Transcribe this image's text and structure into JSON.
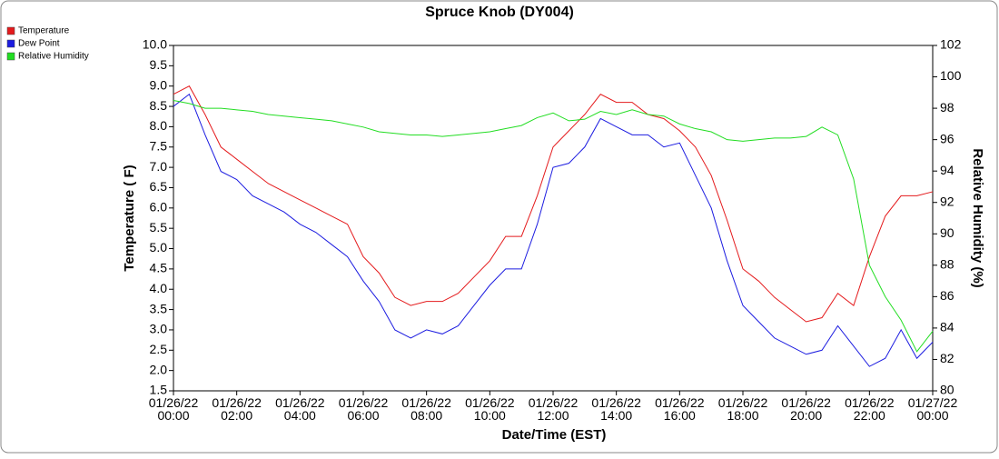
{
  "chart_data": {
    "type": "line",
    "title": "Spruce Knob (DY004)",
    "xlabel": "Date/Time (EST)",
    "ylabel": "Temperature ( F)",
    "y2label": "Relative Humidity (%)",
    "legend": "top-left",
    "grid": false,
    "x": [
      "01/26/22 00:00",
      "01/26/22 00:30",
      "01/26/22 01:00",
      "01/26/22 01:30",
      "01/26/22 02:00",
      "01/26/22 02:30",
      "01/26/22 03:00",
      "01/26/22 03:30",
      "01/26/22 04:00",
      "01/26/22 04:30",
      "01/26/22 05:00",
      "01/26/22 05:30",
      "01/26/22 06:00",
      "01/26/22 06:30",
      "01/26/22 07:00",
      "01/26/22 07:30",
      "01/26/22 08:00",
      "01/26/22 08:30",
      "01/26/22 09:00",
      "01/26/22 09:30",
      "01/26/22 10:00",
      "01/26/22 10:30",
      "01/26/22 11:00",
      "01/26/22 11:30",
      "01/26/22 12:00",
      "01/26/22 12:30",
      "01/26/22 13:00",
      "01/26/22 13:30",
      "01/26/22 14:00",
      "01/26/22 14:30",
      "01/26/22 15:00",
      "01/26/22 15:30",
      "01/26/22 16:00",
      "01/26/22 16:30",
      "01/26/22 17:00",
      "01/26/22 17:30",
      "01/26/22 18:00",
      "01/26/22 18:30",
      "01/26/22 19:00",
      "01/26/22 19:30",
      "01/26/22 20:00",
      "01/26/22 20:30",
      "01/26/22 21:00",
      "01/26/22 21:30",
      "01/26/22 22:00",
      "01/26/22 22:30",
      "01/26/22 23:00",
      "01/26/22 23:30",
      "01/27/22 00:00"
    ],
    "xlim": [
      "01/26/22 00:00",
      "01/27/22 00:00"
    ],
    "xticks": [
      "01/26/22 00:00",
      "01/26/22 02:00",
      "01/26/22 04:00",
      "01/26/22 06:00",
      "01/26/22 08:00",
      "01/26/22 10:00",
      "01/26/22 12:00",
      "01/26/22 14:00",
      "01/26/22 16:00",
      "01/26/22 18:00",
      "01/26/22 20:00",
      "01/26/22 22:00",
      "01/27/22 00:00"
    ],
    "ylim": [
      1.5,
      10
    ],
    "yticks": [
      1.5,
      {
        "value": 2,
        "label": "2.0"
      },
      2.5,
      {
        "value": 3,
        "label": "3.0"
      },
      3.5,
      {
        "value": 4,
        "label": "4.0"
      },
      4.5,
      {
        "value": 5,
        "label": "5.0"
      },
      5.5,
      {
        "value": 6,
        "label": "6.0"
      },
      6.5,
      {
        "value": 7,
        "label": "7.0"
      },
      7.5,
      {
        "value": 8,
        "label": "8.0"
      },
      8.5,
      {
        "value": 9,
        "label": "9.0"
      },
      9.5,
      {
        "value": 10,
        "label": "10.0"
      }
    ],
    "y2lim": [
      80,
      102
    ],
    "y2ticks": [
      80,
      82,
      84,
      86,
      88,
      90,
      92,
      94,
      96,
      98,
      100,
      102
    ],
    "series": [
      {
        "name": "Temperature",
        "color": "#e41a1c",
        "values": [
          8.8,
          9.0,
          8.3,
          7.5,
          7.2,
          6.9,
          6.6,
          6.4,
          6.2,
          6.0,
          5.8,
          5.6,
          4.8,
          4.4,
          3.8,
          3.6,
          3.7,
          3.7,
          3.9,
          4.3,
          4.7,
          5.3,
          5.3,
          6.3,
          7.5,
          7.9,
          8.3,
          8.8,
          8.6,
          8.6,
          8.3,
          8.2,
          7.9,
          7.5,
          6.8,
          5.7,
          4.5,
          4.2,
          3.8,
          3.5,
          3.2,
          3.3,
          3.9,
          3.6,
          4.8,
          5.8,
          6.3,
          6.3,
          6.4
        ]
      },
      {
        "name": "Dew Point",
        "color": "#1c1ce0",
        "values": [
          8.5,
          8.8,
          7.8,
          6.9,
          6.7,
          6.3,
          6.1,
          5.9,
          5.6,
          5.4,
          5.1,
          4.8,
          4.2,
          3.7,
          3.0,
          2.8,
          3.0,
          2.9,
          3.1,
          3.6,
          4.1,
          4.5,
          4.5,
          5.6,
          7.0,
          7.1,
          7.5,
          8.2,
          8.0,
          7.8,
          7.8,
          7.5,
          7.6,
          6.8,
          6.0,
          4.7,
          3.6,
          3.2,
          2.8,
          2.6,
          2.4,
          2.5,
          3.1,
          2.6,
          2.1,
          2.3,
          3.0,
          2.3,
          2.7
        ]
      },
      {
        "name": "Relative Humidity",
        "color": "#22dd22",
        "axis": "y2",
        "values": [
          98.5,
          98.3,
          98.0,
          98.0,
          97.9,
          97.8,
          97.6,
          97.5,
          97.4,
          97.3,
          97.2,
          97.0,
          96.8,
          96.5,
          96.4,
          96.3,
          96.3,
          96.2,
          96.3,
          96.4,
          96.5,
          96.7,
          96.9,
          97.4,
          97.7,
          97.2,
          97.3,
          97.8,
          97.6,
          97.9,
          97.6,
          97.5,
          97.0,
          96.7,
          96.5,
          96.0,
          95.9,
          96.0,
          96.1,
          96.1,
          96.2,
          96.8,
          96.3,
          93.5,
          88.0,
          86.0,
          84.5,
          82.5,
          83.8
        ]
      }
    ]
  }
}
